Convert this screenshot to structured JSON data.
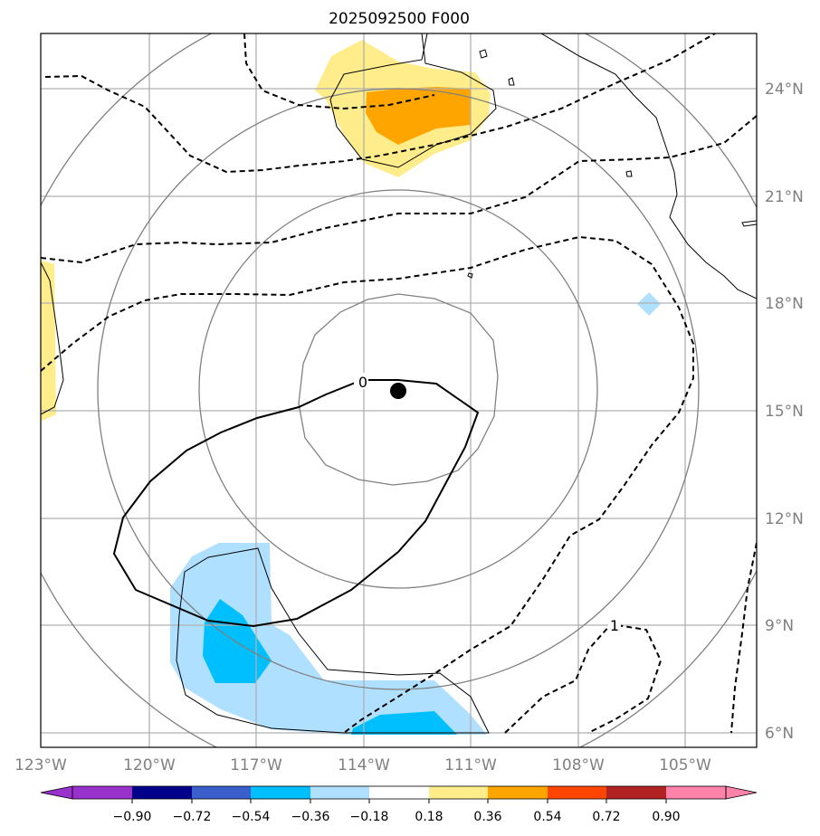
{
  "title": "2025092500 F000",
  "lon_labels": [
    "123°W",
    "120°W",
    "117°W",
    "114°W",
    "111°W",
    "108°W",
    "105°W"
  ],
  "lat_labels": [
    "24°N",
    "21°N",
    "18°N",
    "15°N",
    "12°N",
    "9°N",
    "6°N"
  ],
  "contour_labels": {
    "zero": "0",
    "one": "1"
  },
  "colorbar": {
    "ticks": [
      "−0.90",
      "−0.72",
      "−0.54",
      "−0.36",
      "−0.18",
      "0.18",
      "0.36",
      "0.54",
      "0.72",
      "0.90"
    ],
    "colors": [
      "#9932cc",
      "#00008b",
      "#3a5fcd",
      "#00bfff",
      "#b0e0ff",
      "#ffffff",
      "#ffec8b",
      "#ffa500",
      "#ff4500",
      "#b22222",
      "#ff82ab"
    ]
  },
  "shading_colors": {
    "light_yellow": "#ffec8b",
    "orange": "#ffa500",
    "light_blue": "#b0e0ff",
    "deep_sky_blue": "#00bfff",
    "storm_center": "#000000"
  }
}
